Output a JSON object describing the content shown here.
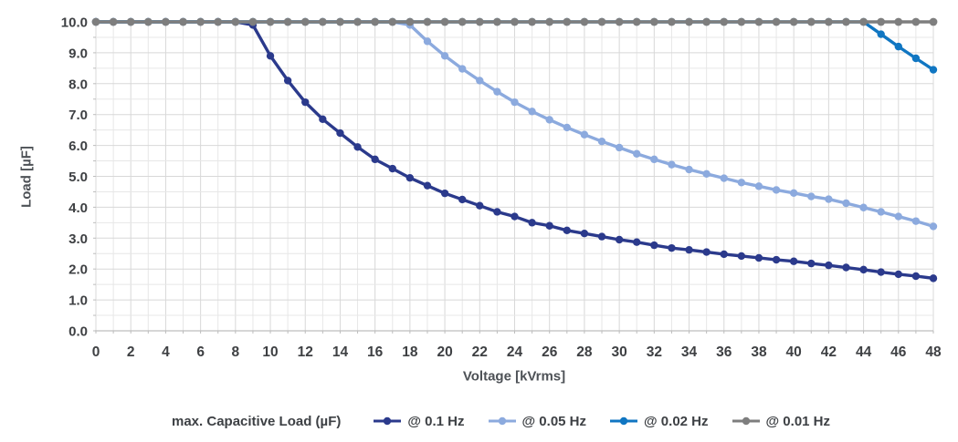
{
  "figure": {
    "background": "#ffffff"
  },
  "chart_data": {
    "type": "line",
    "title": "",
    "xlabel": "Voltage [kVrms]",
    "ylabel": "Load [µF]",
    "legend_title": "max. Capacitive Load (µF)",
    "legend_position": "bottom",
    "grid": true,
    "xlim": [
      0,
      48
    ],
    "ylim": [
      0,
      10
    ],
    "x_tick_step": 2,
    "x_minor_step": 1,
    "y_tick_step": 1,
    "y_minor_step": 0.5,
    "y_tick_decimals": 1,
    "text_color": "#3e4043",
    "axis_title_color": "#4d5156",
    "grid_color": "#d8d8d8",
    "grid_minor_color": "#e7e7e7",
    "axis_line_color": "#bdbdbd",
    "x": [
      0,
      1,
      2,
      3,
      4,
      5,
      6,
      7,
      8,
      9,
      10,
      11,
      12,
      13,
      14,
      15,
      16,
      17,
      18,
      19,
      20,
      21,
      22,
      23,
      24,
      25,
      26,
      27,
      28,
      29,
      30,
      31,
      32,
      33,
      34,
      35,
      36,
      37,
      38,
      39,
      40,
      41,
      42,
      43,
      44,
      45,
      46,
      47,
      48
    ],
    "series": [
      {
        "name": "@ 0.1 Hz",
        "color": "#2b3a8c",
        "marker": "circle",
        "values": [
          10,
          10,
          10,
          10,
          10,
          10,
          10,
          10,
          10,
          9.9,
          8.9,
          8.1,
          7.4,
          6.85,
          6.4,
          5.95,
          5.55,
          5.25,
          4.95,
          4.7,
          4.45,
          4.25,
          4.05,
          3.85,
          3.7,
          3.5,
          3.4,
          3.25,
          3.15,
          3.05,
          2.95,
          2.87,
          2.77,
          2.68,
          2.62,
          2.55,
          2.48,
          2.42,
          2.36,
          2.3,
          2.25,
          2.18,
          2.12,
          2.05,
          1.98,
          1.9,
          1.83,
          1.77,
          1.7
        ]
      },
      {
        "name": "@ 0.05 Hz",
        "color": "#8caade",
        "marker": "circle",
        "values": [
          10,
          10,
          10,
          10,
          10,
          10,
          10,
          10,
          10,
          10,
          10,
          10,
          10,
          10,
          10,
          10,
          10,
          10,
          9.9,
          9.37,
          8.9,
          8.48,
          8.1,
          7.74,
          7.4,
          7.1,
          6.83,
          6.58,
          6.35,
          6.13,
          5.93,
          5.73,
          5.55,
          5.38,
          5.22,
          5.08,
          4.94,
          4.8,
          4.68,
          4.56,
          4.46,
          4.35,
          4.26,
          4.13,
          3.99,
          3.85,
          3.7,
          3.55,
          3.38
        ]
      },
      {
        "name": "@ 0.02 Hz",
        "color": "#1076c2",
        "marker": "circle",
        "values": [
          10,
          10,
          10,
          10,
          10,
          10,
          10,
          10,
          10,
          10,
          10,
          10,
          10,
          10,
          10,
          10,
          10,
          10,
          10,
          10,
          10,
          10,
          10,
          10,
          10,
          10,
          10,
          10,
          10,
          10,
          10,
          10,
          10,
          10,
          10,
          10,
          10,
          10,
          10,
          10,
          10,
          10,
          10,
          10,
          10,
          9.6,
          9.2,
          8.82,
          8.45
        ]
      },
      {
        "name": "@ 0.01 Hz",
        "color": "#7e7e7e",
        "marker": "circle",
        "values": [
          10,
          10,
          10,
          10,
          10,
          10,
          10,
          10,
          10,
          10,
          10,
          10,
          10,
          10,
          10,
          10,
          10,
          10,
          10,
          10,
          10,
          10,
          10,
          10,
          10,
          10,
          10,
          10,
          10,
          10,
          10,
          10,
          10,
          10,
          10,
          10,
          10,
          10,
          10,
          10,
          10,
          10,
          10,
          10,
          10,
          10,
          10,
          10,
          10
        ]
      }
    ]
  }
}
